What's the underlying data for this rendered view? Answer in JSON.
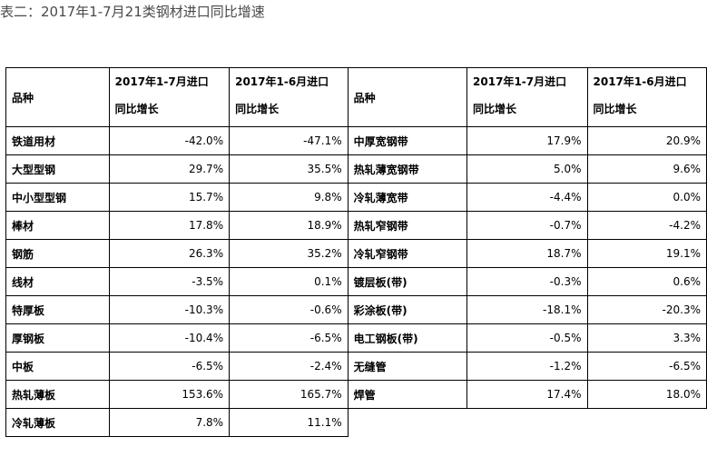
{
  "title": "表二：2017年1-7月21类钢材进口同比增速",
  "header": {
    "product": "品种",
    "col1_line1": "2017年1-7月进口",
    "col1_line2": "同比增长",
    "col2_line1": "2017年1-6月进口",
    "col2_line2": "同比增长"
  },
  "left_rows": [
    {
      "name": "铁道用材",
      "jul": "-42.0%",
      "jun": "-47.1%"
    },
    {
      "name": "大型型钢",
      "jul": "29.7%",
      "jun": "35.5%"
    },
    {
      "name": "中小型型钢",
      "jul": "15.7%",
      "jun": "9.8%"
    },
    {
      "name": "棒材",
      "jul": "17.8%",
      "jun": "18.9%"
    },
    {
      "name": "钢筋",
      "jul": "26.3%",
      "jun": "35.2%"
    },
    {
      "name": "线材",
      "jul": "-3.5%",
      "jun": "0.1%"
    },
    {
      "name": "特厚板",
      "jul": "-10.3%",
      "jun": "-0.6%"
    },
    {
      "name": "厚钢板",
      "jul": "-10.4%",
      "jun": "-6.5%"
    },
    {
      "name": "中板",
      "jul": "-6.5%",
      "jun": "-2.4%"
    },
    {
      "name": "热轧薄板",
      "jul": "153.6%",
      "jun": "165.7%"
    },
    {
      "name": "冷轧薄板",
      "jul": "7.8%",
      "jun": "11.1%"
    }
  ],
  "right_rows": [
    {
      "name": "中厚宽钢带",
      "jul": "17.9%",
      "jun": "20.9%"
    },
    {
      "name": "热轧薄宽钢带",
      "jul": "5.0%",
      "jun": "9.6%"
    },
    {
      "name": "冷轧薄宽带",
      "jul": "-4.4%",
      "jun": "0.0%"
    },
    {
      "name": "热轧窄钢带",
      "jul": "-0.7%",
      "jun": "-4.2%"
    },
    {
      "name": "冷轧窄钢带",
      "jul": "18.7%",
      "jun": "19.1%"
    },
    {
      "name": "镀层板(带)",
      "jul": "-0.3%",
      "jun": "0.6%"
    },
    {
      "name": "彩涂板(带)",
      "jul": "-18.1%",
      "jun": "-20.3%"
    },
    {
      "name": "电工钢板(带)",
      "jul": "-0.5%",
      "jun": "3.3%"
    },
    {
      "name": "无缝管",
      "jul": "-1.2%",
      "jun": "-6.5%"
    },
    {
      "name": "焊管",
      "jul": "17.4%",
      "jun": "18.0%"
    }
  ]
}
